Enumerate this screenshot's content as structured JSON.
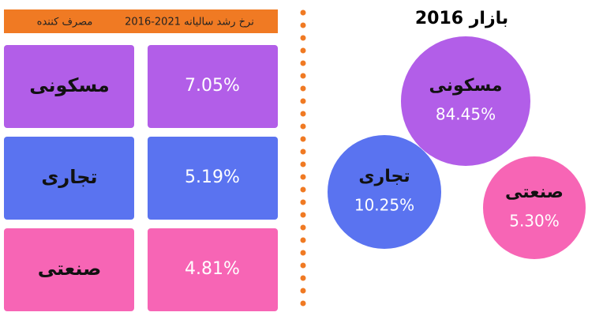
{
  "table": {
    "header": [
      "2016-2021 نرخ رشد سالیانه",
      "مصرف کننده"
    ],
    "rows": [
      [
        "7.05%",
        "مسکونی"
      ],
      [
        "5.19%",
        "تجاری"
      ],
      [
        "4.81%",
        "صنعتی"
      ]
    ]
  },
  "bubbles": {
    "title": "بازار 2016",
    "items": [
      {
        "label": "مسکونی",
        "value": "84.45%"
      },
      {
        "label": "تجاری",
        "value": "10.25%"
      },
      {
        "label": "صنعتی",
        "value": "5.30%"
      }
    ]
  }
}
